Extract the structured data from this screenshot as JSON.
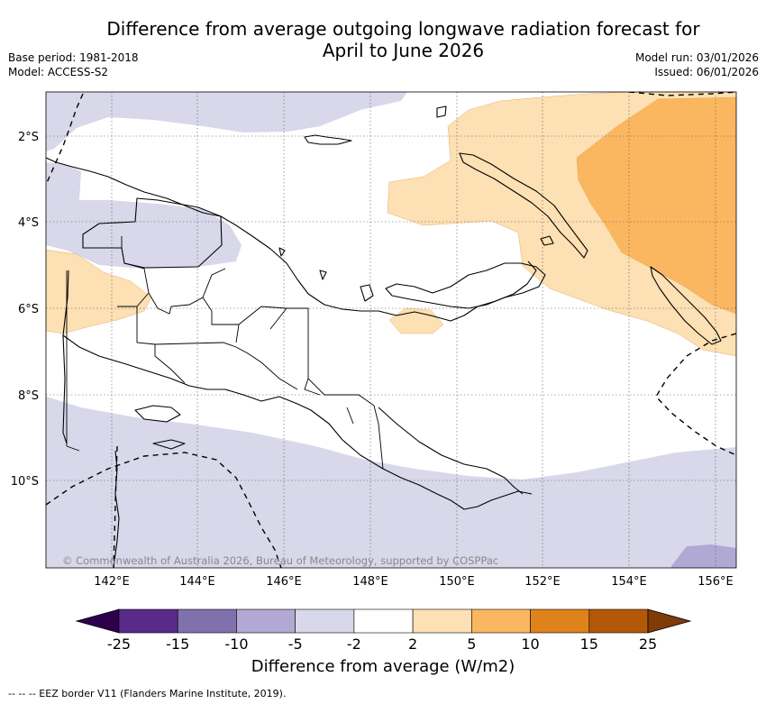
{
  "title_line1": "Difference from average outgoing longwave radiation forecast for",
  "title_line2": "April to June 2026",
  "base_period": "Base period: 1981-2018",
  "model": "Model: ACCESS-S2",
  "model_run": "Model run: 03/01/2026",
  "issued": "Issued: 06/01/2026",
  "copyright": "© Commonwealth of Australia 2026, Bureau of Meteorology, supported by COSPPac",
  "lat_labels": [
    "2°S",
    "4°S",
    "6°S",
    "8°S",
    "10°S"
  ],
  "lon_labels": [
    "142°E",
    "144°E",
    "146°E",
    "148°E",
    "150°E",
    "152°E",
    "154°E",
    "156°E"
  ],
  "colorbar": {
    "ticks": [
      "-25",
      "-15",
      "-10",
      "-5",
      "-2",
      "2",
      "5",
      "10",
      "15",
      "25"
    ],
    "colors": [
      "#592a8a",
      "#8071ad",
      "#b1a9d4",
      "#d8d8ea",
      "#ffffff",
      "#fde0b3",
      "#fbb760",
      "#e0821c",
      "#b35806"
    ],
    "under_color": "#2d004b",
    "over_color": "#7f3b08",
    "label": "Difference from average (W/m2)"
  },
  "legend_footer": "-- -- -- EEZ border V11 (Flanders Marine Institute, 2019)."
}
